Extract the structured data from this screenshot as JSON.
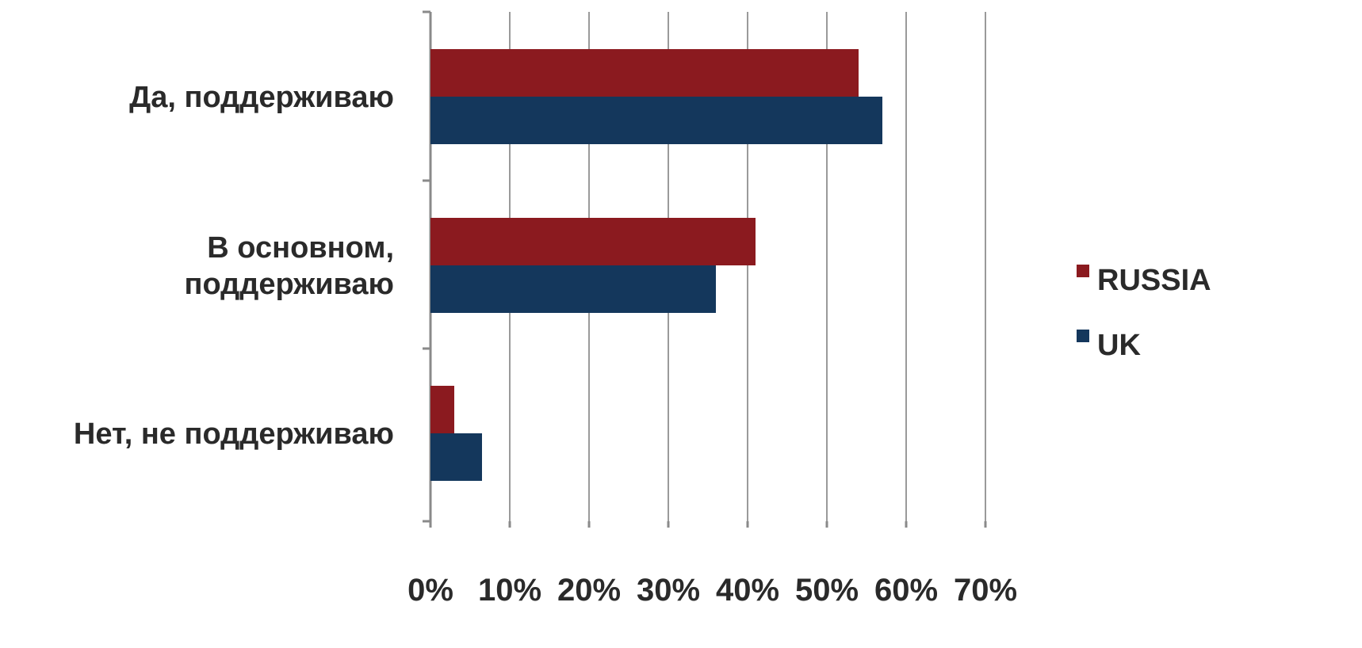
{
  "chart_data": {
    "type": "bar",
    "orientation": "horizontal",
    "categories": [
      [
        "Да, поддерживаю"
      ],
      [
        "В основном,",
        "поддерживаю"
      ],
      [
        "Нет, не поддерживаю"
      ]
    ],
    "series": [
      {
        "name": "RUSSIA",
        "color": "#8b1a1f",
        "values": [
          54,
          41,
          3
        ]
      },
      {
        "name": "UK",
        "color": "#14375c",
        "values": [
          57,
          36,
          6.5
        ]
      }
    ],
    "xlim": [
      0,
      70
    ],
    "xticks": [
      "0%",
      "10%",
      "20%",
      "30%",
      "40%",
      "50%",
      "60%",
      "70%"
    ],
    "grid": true,
    "legend_position": "right"
  }
}
